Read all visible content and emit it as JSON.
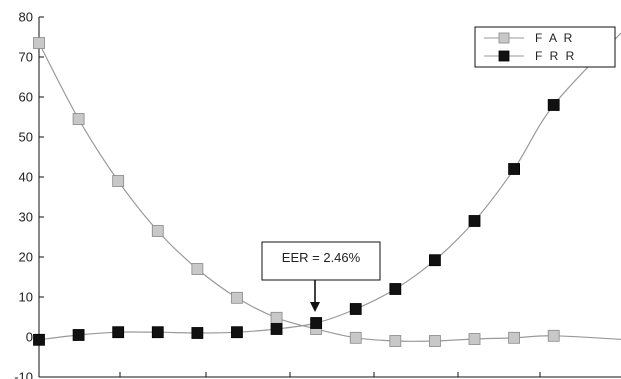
{
  "chart_data": {
    "type": "line",
    "title": "",
    "xlabel": "",
    "ylabel": "",
    "ylim": [
      -10,
      80
    ],
    "yticks": [
      -10,
      0,
      10,
      20,
      30,
      40,
      50,
      60,
      70,
      80
    ],
    "ytick_labels": [
      "-10",
      "0",
      "10",
      "20",
      "30",
      "40",
      "50",
      "60",
      "70",
      "80"
    ],
    "x": [
      0,
      1,
      2,
      3,
      4,
      5,
      6,
      7,
      8,
      9,
      10,
      11,
      12,
      13,
      14
    ],
    "xlim": [
      0,
      14.7
    ],
    "grid": false,
    "legend_position": "top-right",
    "series": [
      {
        "name": "F A R",
        "marker": "square",
        "marker_color": "#c8c8c8",
        "line_color": "#9a9a9a",
        "values": [
          73.5,
          54.5,
          39.0,
          26.5,
          17.0,
          9.8,
          4.8,
          2.0,
          -0.2,
          -1.0,
          -1.0,
          -0.5,
          -0.2,
          0.3,
          null
        ]
      },
      {
        "name": "F R R",
        "marker": "square",
        "marker_color": "#111111",
        "line_color": "#9a9a9a",
        "values": [
          -0.7,
          0.5,
          1.2,
          1.2,
          1.0,
          1.2,
          2.0,
          3.5,
          7.0,
          12.0,
          19.2,
          29.0,
          42.0,
          58.0,
          null
        ]
      }
    ],
    "curve_ends": {
      "far": [
        14.7,
        -0.6
      ],
      "frr": [
        14.7,
        76.0
      ]
    },
    "annotations": [
      {
        "text": "EER = 2.46%",
        "target_x": 6.7,
        "target_y": 5.3
      }
    ]
  }
}
